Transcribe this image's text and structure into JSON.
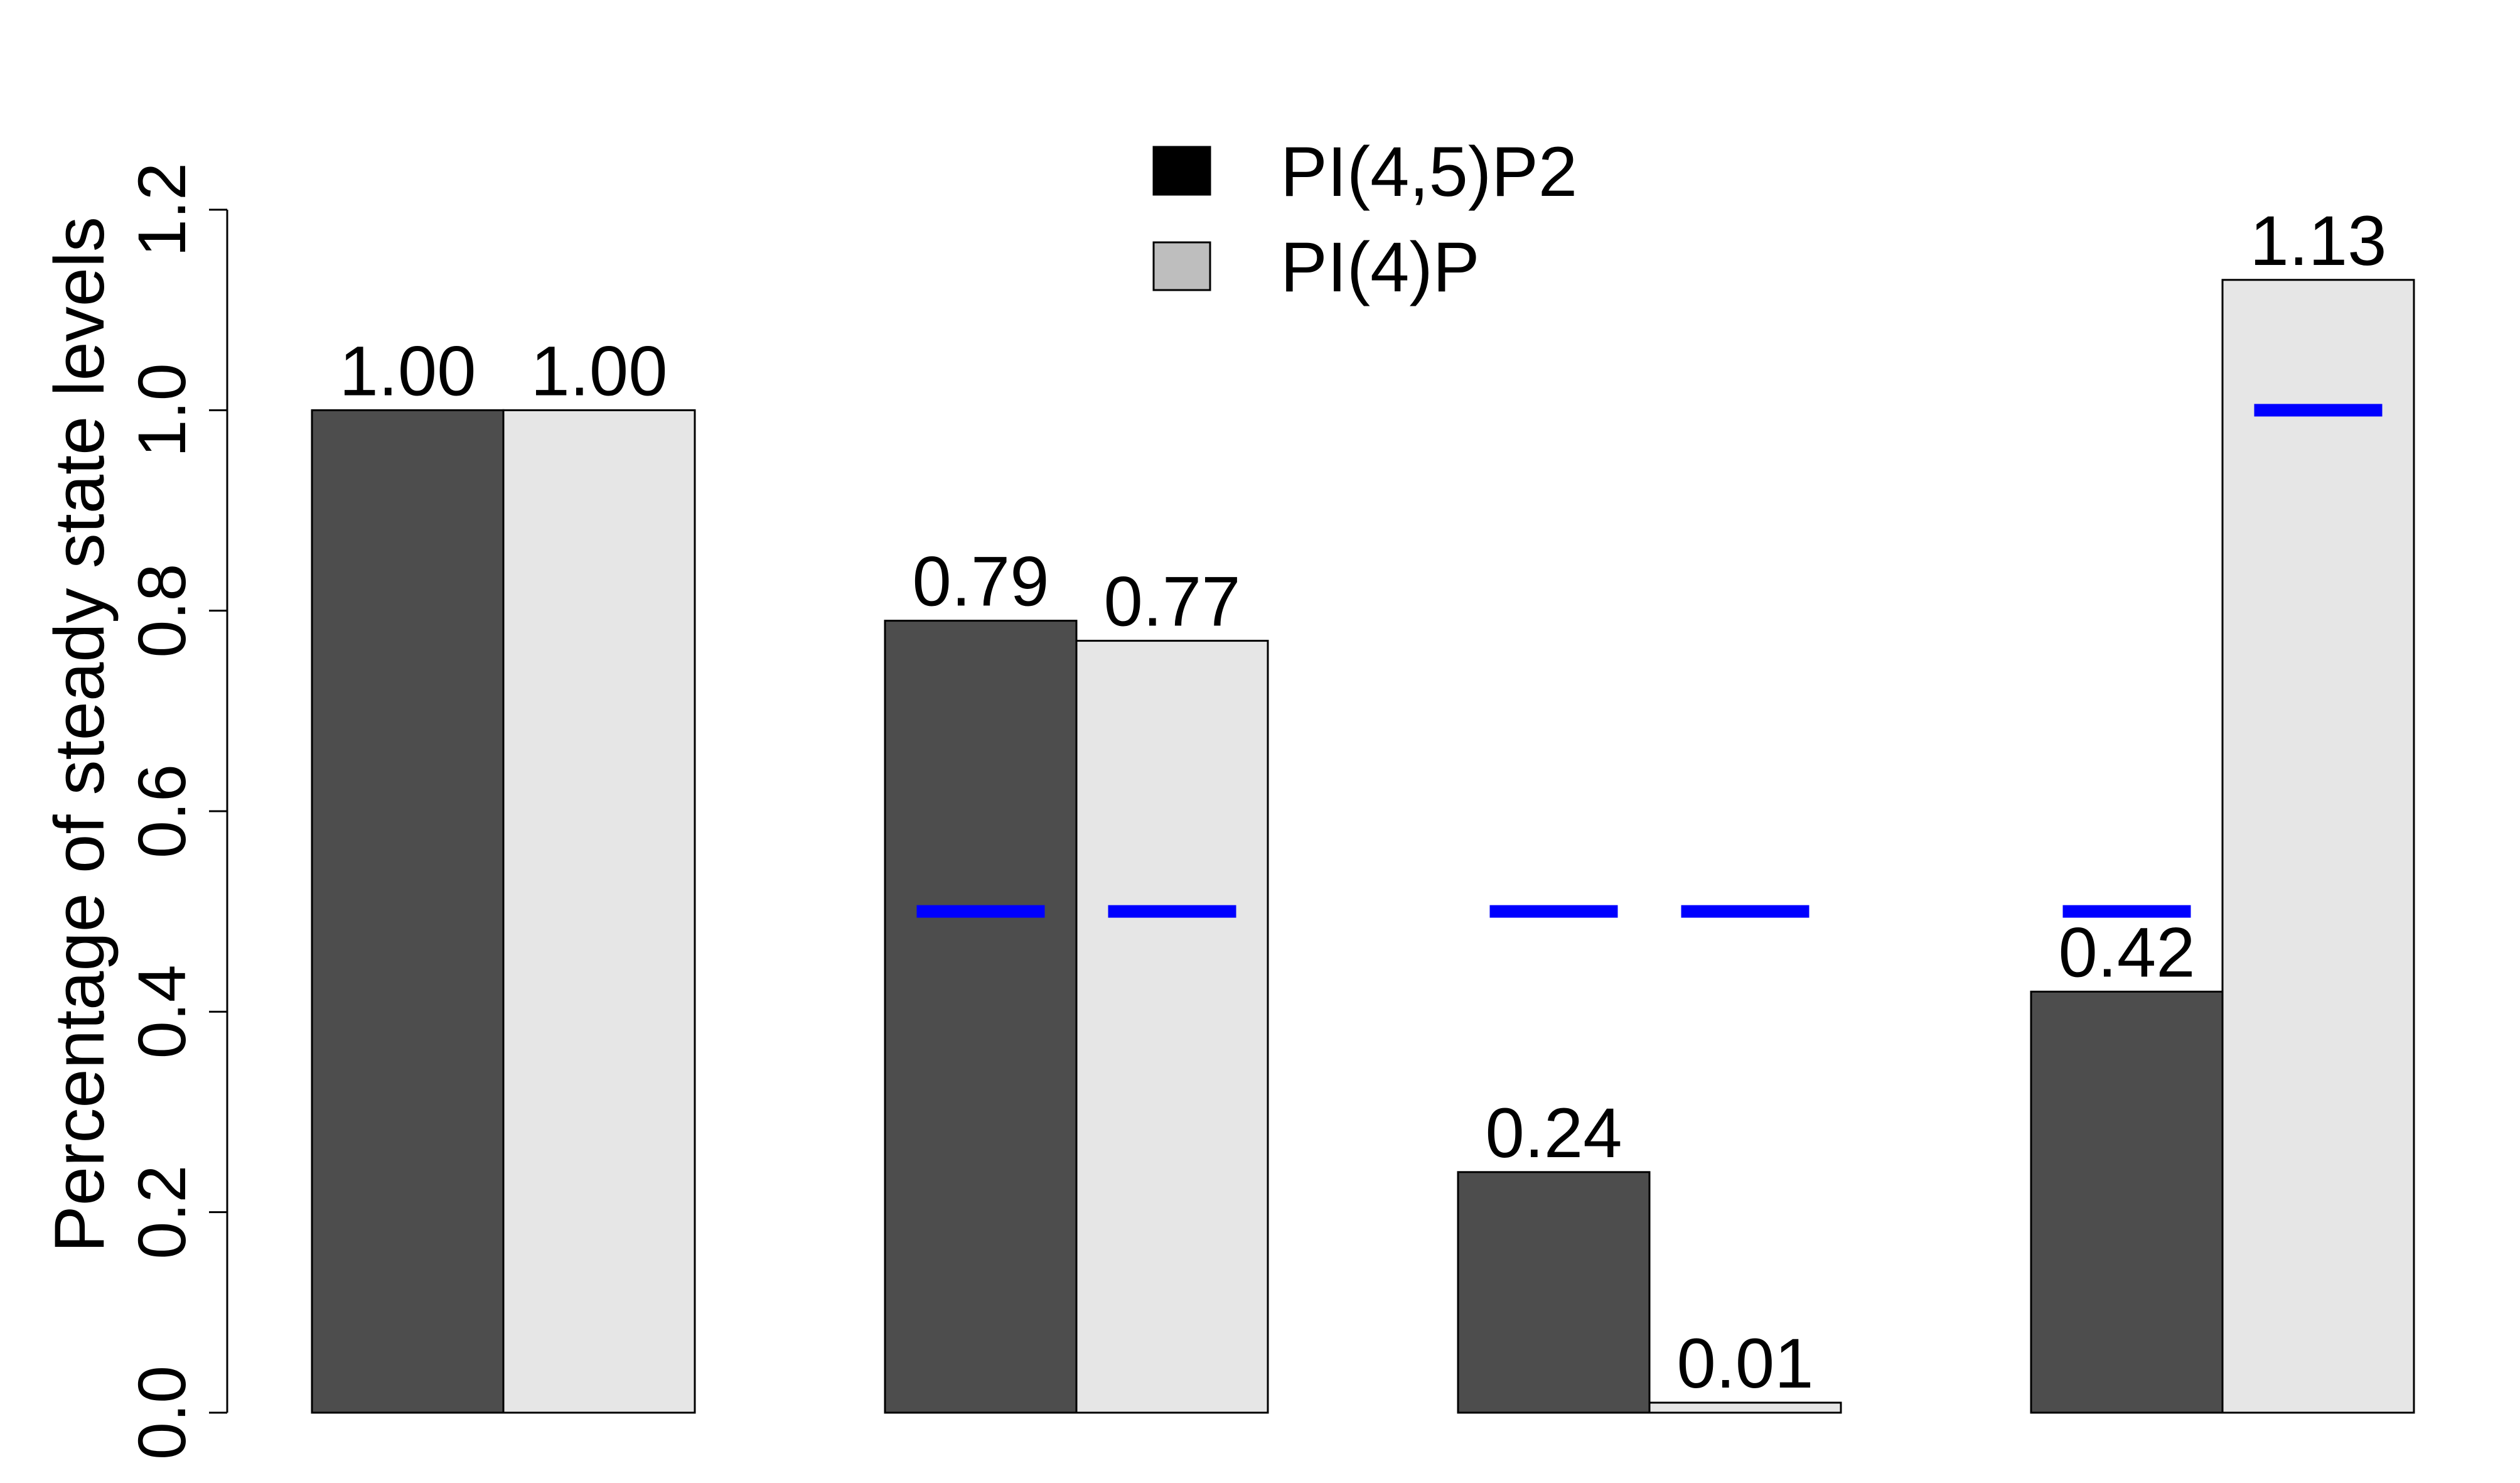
{
  "chart_data": {
    "type": "bar",
    "ylabel": "Percentage of steady state levels",
    "xlabel": "",
    "ylim": [
      0,
      1.2
    ],
    "yticks": [
      "0.0",
      "0.2",
      "0.4",
      "0.6",
      "0.8",
      "1.0",
      "1.2"
    ],
    "groups": 4,
    "series": [
      {
        "name": "PI(4,5)P2",
        "color": "#4d4d4d",
        "legend_color": "#000000",
        "values": [
          1.0,
          0.79,
          0.24,
          0.42
        ],
        "labels": [
          "1.00",
          "0.79",
          "0.24",
          "0.42"
        ]
      },
      {
        "name": "PI(4)P",
        "color": "#e6e6e6",
        "legend_color": "#bebebe",
        "values": [
          1.0,
          0.77,
          0.01,
          1.13
        ],
        "labels": [
          "1.00",
          "0.77",
          "0.01",
          "1.13"
        ]
      }
    ],
    "reference_lines": {
      "color": "#0000ff",
      "values": [
        [
          null,
          null
        ],
        [
          0.5,
          0.5
        ],
        [
          0.5,
          0.5
        ],
        [
          0.5,
          1.0
        ]
      ]
    },
    "legend_position": "top-center"
  }
}
